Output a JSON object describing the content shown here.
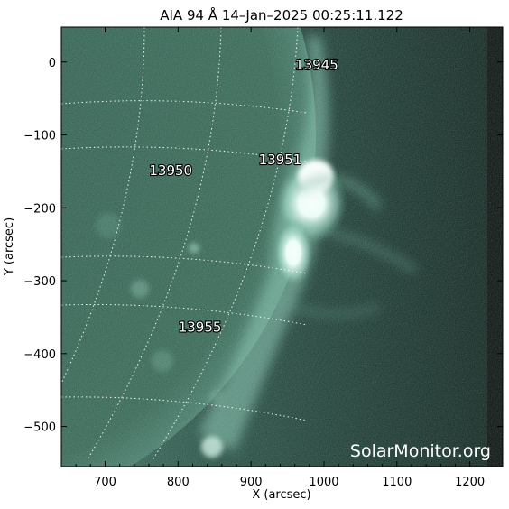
{
  "title": "AIA 94 Å 14–Jan–2025 00:25:11.122",
  "xlabel": "X (arcsec)",
  "ylabel": "Y (arcsec)",
  "x_ticks": [
    "700",
    "800",
    "900",
    "1000",
    "1100",
    "1200"
  ],
  "y_ticks": [
    "0",
    "−100",
    "−200",
    "−300",
    "−400",
    "−500"
  ],
  "x_range": [
    640,
    1245
  ],
  "y_range": [
    -555,
    48
  ],
  "active_regions": [
    {
      "id": "13945",
      "x": 990,
      "y": -10
    },
    {
      "id": "13951",
      "x": 940,
      "y": -140
    },
    {
      "id": "13950",
      "x": 790,
      "y": -155
    },
    {
      "id": "13955",
      "x": 830,
      "y": -370
    }
  ],
  "watermark": "SolarMonitor.org",
  "colors": {
    "disk": "#2f5a4d",
    "disk_dark": "#1b3a31",
    "corona": "#24483d",
    "limb_bright": "#ffffff",
    "sky_dark": "#0a0f0d",
    "grid": "#ffffff"
  }
}
